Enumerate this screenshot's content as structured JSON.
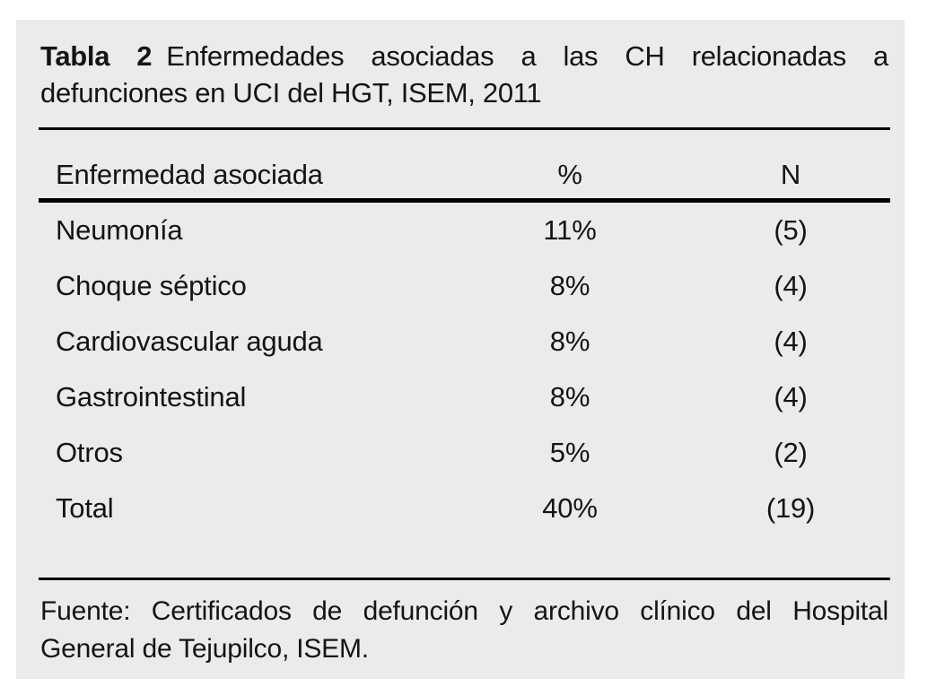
{
  "table": {
    "label": "Tabla 2",
    "caption_line1": "Enfermedades asociadas a las CH relacionadas a",
    "caption_line2": "defunciones en UCI del HGT, ISEM, 2011",
    "columns": [
      "Enfermedad asociada",
      "%",
      "N"
    ],
    "rows": [
      {
        "name": "Neumonía",
        "pct": "11%",
        "n": "(5)"
      },
      {
        "name": "Choque séptico",
        "pct": "8%",
        "n": "(4)"
      },
      {
        "name": "Cardiovascular aguda",
        "pct": "8%",
        "n": "(4)"
      },
      {
        "name": "Gastrointestinal",
        "pct": "8%",
        "n": "(4)"
      },
      {
        "name": "Otros",
        "pct": "5%",
        "n": "(2)"
      },
      {
        "name": "Total",
        "pct": "40%",
        "n": "(19)"
      }
    ],
    "source_line1": "Fuente: Certificados de defunción y archivo clínico del Hospital",
    "source_line2": "General de Tejupilco, ISEM."
  },
  "chart_data": {
    "type": "table",
    "title": "Tabla 2 Enfermedades asociadas a las CH relacionadas a defunciones en UCI del HGT, ISEM, 2011",
    "columns": [
      "Enfermedad asociada",
      "%",
      "N"
    ],
    "rows": [
      [
        "Neumonía",
        "11%",
        "(5)"
      ],
      [
        "Choque séptico",
        "8%",
        "(4)"
      ],
      [
        "Cardiovascular aguda",
        "8%",
        "(4)"
      ],
      [
        "Gastrointestinal",
        "8%",
        "(4)"
      ],
      [
        "Otros",
        "5%",
        "(2)"
      ],
      [
        "Total",
        "40%",
        "(19)"
      ]
    ],
    "source": "Fuente: Certificados de defunción y archivo clínico del Hospital General de Tejupilco, ISEM."
  },
  "colors": {
    "panel_bg": "#ebebeb",
    "text": "#141414",
    "rule": "#000000"
  }
}
